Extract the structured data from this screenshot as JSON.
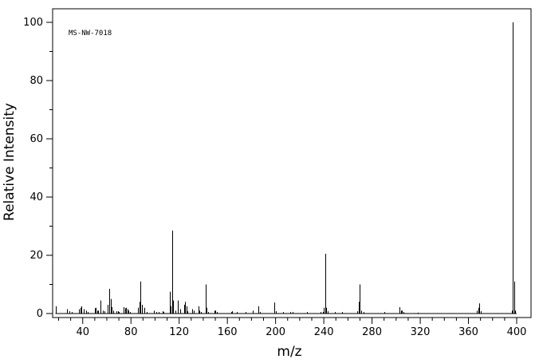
{
  "chart_data": {
    "type": "bar",
    "subtype": "mass-spectrum",
    "annotation": "MS-NW-7018",
    "xlabel": "m/z",
    "ylabel": "Relative Intensity",
    "xlim": [
      10,
      405
    ],
    "ylim": [
      0,
      105
    ],
    "x_ticks": [
      40,
      80,
      120,
      160,
      200,
      240,
      280,
      320,
      360,
      400
    ],
    "y_ticks": [
      0,
      20,
      40,
      60,
      80,
      100
    ],
    "grid": false,
    "legend": "none",
    "series": [
      {
        "x": [
          18,
          27,
          29,
          31,
          37,
          38,
          39,
          41,
          43,
          44,
          50,
          51,
          52,
          53,
          55,
          57,
          58,
          61,
          62,
          63,
          64,
          65,
          68,
          69,
          70,
          74,
          75,
          76,
          77,
          78,
          79,
          86,
          87,
          88,
          89,
          91,
          93,
          99,
          101,
          103,
          106,
          107,
          112,
          113,
          114,
          115,
          117,
          119,
          121,
          124,
          125,
          126,
          127,
          131,
          132,
          136,
          137,
          138,
          142,
          143,
          144,
          149,
          150,
          151,
          163,
          164,
          168,
          175,
          181,
          186,
          187,
          199,
          200,
          206,
          212,
          214,
          226,
          237,
          239,
          240,
          241,
          242,
          243,
          249,
          255,
          268,
          269,
          270,
          271,
          273,
          290,
          303,
          304,
          305,
          306,
          318,
          367,
          368,
          369,
          370,
          396,
          397,
          398,
          399
        ],
        "values": [
          2.5,
          1.5,
          0.8,
          0.5,
          1.5,
          2,
          2.5,
          1.5,
          1,
          0.5,
          1.8,
          2,
          1,
          1,
          4.5,
          1,
          0.8,
          3,
          8.5,
          5,
          2.2,
          1,
          0.8,
          0.8,
          0.5,
          2.2,
          1.8,
          2,
          1.5,
          1,
          0.5,
          2,
          4,
          11,
          3,
          2,
          0.5,
          1,
          0.5,
          0.5,
          0.8,
          0.5,
          7.5,
          2.5,
          28.5,
          4.5,
          1,
          4.5,
          1.5,
          3,
          4,
          2.5,
          0.8,
          1.5,
          1,
          2.5,
          1,
          0.5,
          10,
          2,
          0.5,
          1,
          1,
          0.5,
          0.5,
          0.8,
          0.5,
          0.5,
          1,
          2.5,
          0.5,
          3.8,
          0.8,
          0.5,
          0.5,
          0.5,
          0.5,
          0.5,
          0.5,
          2,
          20.5,
          2,
          0.8,
          0.5,
          0.5,
          0.8,
          4,
          10,
          1,
          0.5,
          0.5,
          2.2,
          1,
          1,
          0.5,
          0.3,
          1,
          2,
          3.5,
          0.8,
          1,
          100,
          11,
          1
        ]
      }
    ]
  }
}
